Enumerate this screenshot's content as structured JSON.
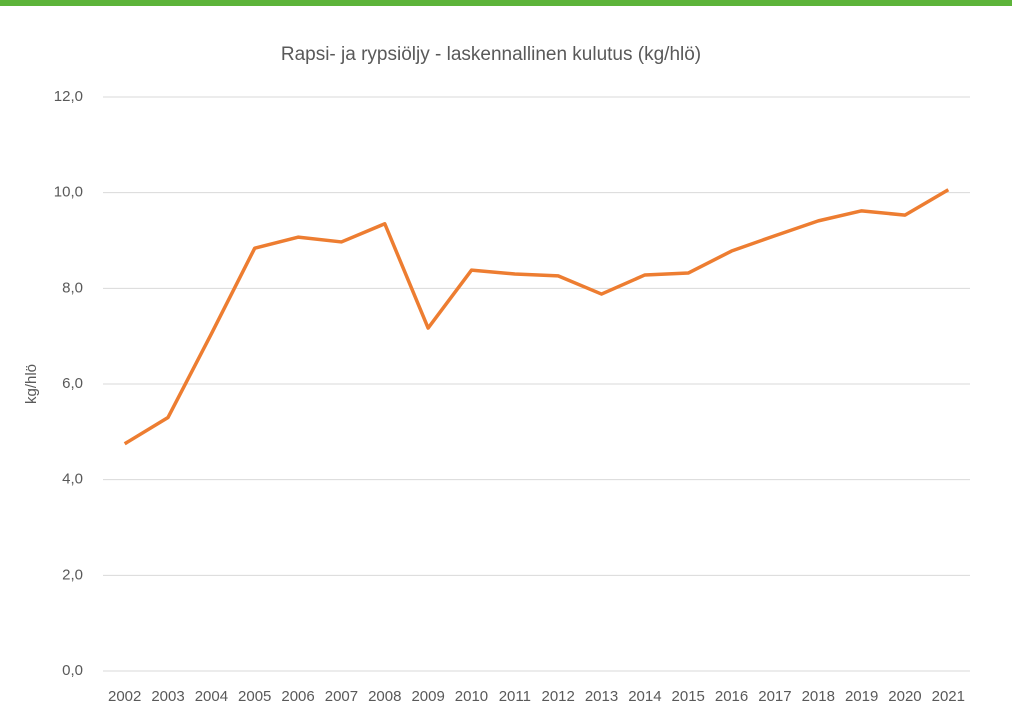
{
  "chart_data": {
    "type": "line",
    "title": "Rapsi- ja rypsiöljy - laskennallinen kulutus (kg/hlö)",
    "y_label": "kg/hlö",
    "categories": [
      "2002",
      "2003",
      "2004",
      "2005",
      "2006",
      "2007",
      "2008",
      "2009",
      "2010",
      "2011",
      "2012",
      "2013",
      "2014",
      "2015",
      "2016",
      "2017",
      "2018",
      "2019",
      "2020",
      "2021"
    ],
    "series": [
      {
        "color": "#ed7d31",
        "values": [
          4.75,
          5.3,
          7.05,
          8.84,
          9.07,
          8.97,
          9.35,
          7.17,
          8.38,
          8.3,
          8.26,
          7.88,
          8.28,
          8.32,
          8.78,
          9.1,
          9.41,
          9.62,
          9.53,
          10.06
        ]
      }
    ],
    "ylim": [
      0,
      12
    ],
    "yticks": [
      {
        "value": 0,
        "label": "0,0"
      },
      {
        "value": 2,
        "label": "2,0"
      },
      {
        "value": 4,
        "label": "4,0"
      },
      {
        "value": 6,
        "label": "6,0"
      },
      {
        "value": 8,
        "label": "8,0"
      },
      {
        "value": 10,
        "label": "10,0"
      },
      {
        "value": 12,
        "label": "12,0"
      }
    ],
    "grid": true
  }
}
